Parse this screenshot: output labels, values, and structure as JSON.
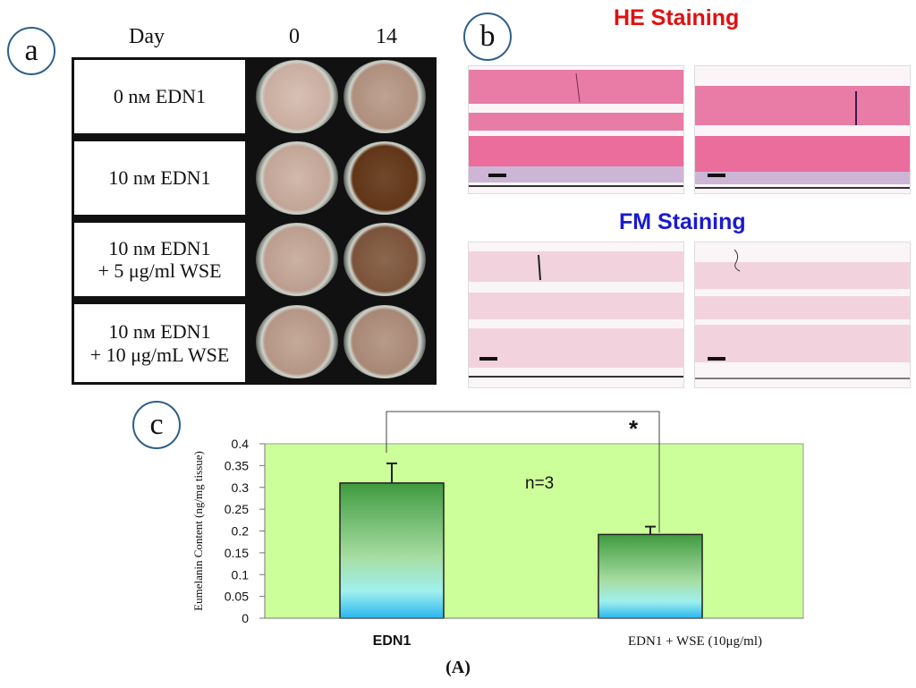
{
  "panel_a": {
    "label": "a",
    "header": {
      "day": "Day",
      "col1": "0",
      "col2": "14"
    },
    "rows": [
      {
        "line1": "0 nм EDN1",
        "line2": "",
        "day0_level": 0.15,
        "day14_level": 0.35
      },
      {
        "line1": "10 nм EDN1",
        "line2": "",
        "day0_level": 0.2,
        "day14_level": 0.95
      },
      {
        "line1": "10 nм EDN1",
        "line2": "+ 5 μg/ml WSE",
        "day0_level": 0.25,
        "day14_level": 0.75
      },
      {
        "line1": "10 nм EDN1",
        "line2": "+ 10 μg/mL WSE",
        "day0_level": 0.3,
        "day14_level": 0.4
      }
    ]
  },
  "panel_b": {
    "label": "b",
    "he_title": "HE Staining",
    "fm_title": "FM Staining",
    "colors": {
      "he_title": "#e01010",
      "fm_title": "#1a1ad0",
      "he_tissue": "#e87ca6",
      "fm_tissue": "#f2d3dd"
    }
  },
  "panel_c": {
    "label": "c"
  },
  "chart_data": {
    "type": "bar",
    "categories": [
      "EDN1",
      "EDN1 + WSE (10μg/ml)"
    ],
    "values": [
      0.31,
      0.192
    ],
    "errors": [
      0.045,
      0.018
    ],
    "ylabel": "Eumelanin Content (ng/mg tissue)",
    "ylim": [
      0,
      0.4
    ],
    "yticks": [
      "0",
      "0.05",
      "0.1",
      "0.15",
      "0.2",
      "0.25",
      "0.3",
      "0.35",
      "0.4"
    ],
    "annotation": "n=3",
    "significance": "*",
    "grid": false,
    "background": "#ccff99"
  },
  "caption": "(A)"
}
